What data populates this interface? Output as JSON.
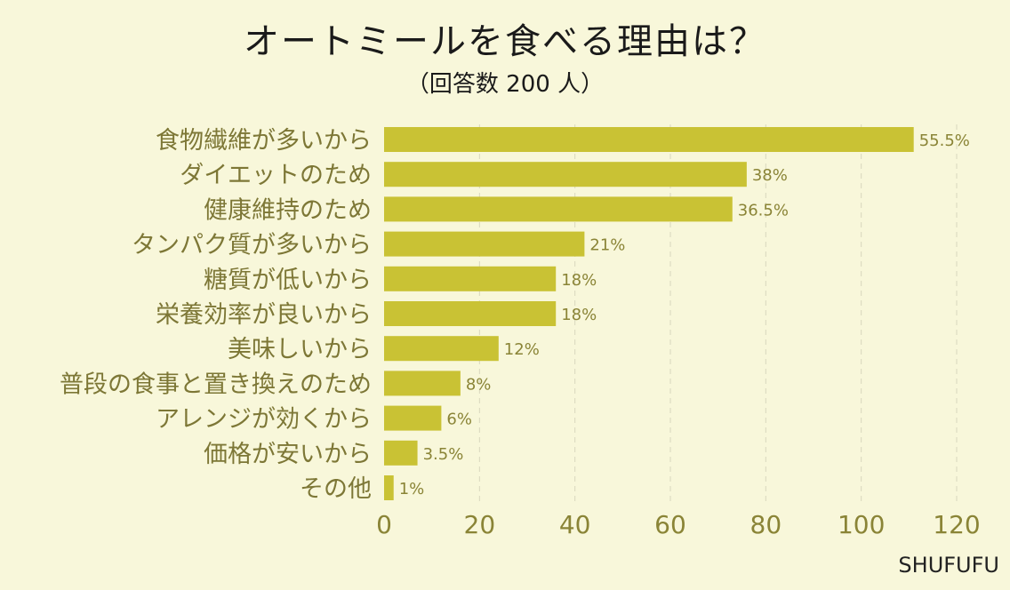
{
  "chart_data": {
    "type": "bar",
    "orientation": "horizontal",
    "title": "オートミールを食べる理由は？",
    "subtitle": "（回答数 200 人）",
    "categories": [
      "食物繊維が多いから",
      "ダイエットのため",
      "健康維持のため",
      "タンパク質が多いから",
      "糖質が低いから",
      "栄養効率が良いから",
      "美味しいから",
      "普段の食事と置き換えのため",
      "アレンジが効くから",
      "価格が安いから",
      "その他"
    ],
    "values": [
      111,
      76,
      73,
      42,
      36,
      36,
      24,
      16,
      12,
      7,
      2
    ],
    "value_labels": [
      "55.5%",
      "38%",
      "36.5%",
      "21%",
      "18%",
      "18%",
      "12%",
      "8%",
      "6%",
      "3.5%",
      "1%"
    ],
    "xticks": [
      "0",
      "20",
      "40",
      "60",
      "80",
      "100",
      "120"
    ],
    "xlim": [
      0,
      120
    ],
    "grid": "vertical dashed",
    "colors": {
      "bar": "#c9c234",
      "background": "#f8f7da",
      "axis_text": "#8a8436",
      "label_text": "#7d7736"
    }
  },
  "brand": "SHUFUFU"
}
